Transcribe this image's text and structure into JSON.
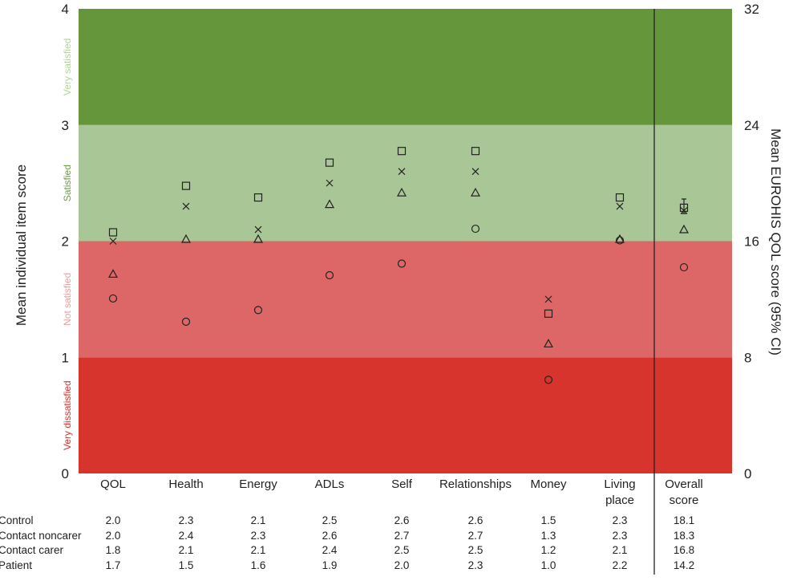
{
  "chart_data": {
    "type": "scatter",
    "categories": [
      "QOL",
      "Health",
      "Energy",
      "ADLs",
      "Self",
      "Relationships",
      "Money",
      "Living place"
    ],
    "overall_category": "Overall score",
    "ylabel": "Mean individual item score",
    "y2label": "Mean EUROHIS QOL score (95% CI)",
    "ylim": [
      0,
      4
    ],
    "y2lim": [
      0,
      32
    ],
    "yticks": [
      "0",
      "1",
      "2",
      "3",
      "4"
    ],
    "y2ticks": [
      "0",
      "8",
      "16",
      "24",
      "32"
    ],
    "bands": [
      {
        "label": "Very dissatisfied",
        "from": 0,
        "to": 1,
        "color": "#d6342c",
        "text_color": "#d6342c"
      },
      {
        "label": "Not satisfied",
        "from": 1,
        "to": 2,
        "color": "#dd6767",
        "text_color": "#e8a0a0"
      },
      {
        "label": "Satisfied",
        "from": 2,
        "to": 3,
        "color": "#a9c796",
        "text_color": "#6d9c48"
      },
      {
        "label": "Very satisfied",
        "from": 3,
        "to": 4,
        "color": "#65963c",
        "text_color": "#b5d39c"
      }
    ],
    "series": [
      {
        "name": "Control",
        "marker": "x",
        "values": [
          2.0,
          2.3,
          2.1,
          2.5,
          2.6,
          2.6,
          1.5,
          2.3
        ],
        "overall": 18.1
      },
      {
        "name": "Contact noncarer",
        "marker": "square",
        "values": [
          2.0,
          2.4,
          2.3,
          2.6,
          2.7,
          2.7,
          1.3,
          2.3
        ],
        "overall": 18.3
      },
      {
        "name": "Contact carer",
        "marker": "triangle",
        "values": [
          1.8,
          2.1,
          2.1,
          2.4,
          2.5,
          2.5,
          1.2,
          2.1
        ],
        "overall": 16.8
      },
      {
        "name": "Patient",
        "marker": "circle",
        "values": [
          1.7,
          1.5,
          1.6,
          1.9,
          2.0,
          2.3,
          1.0,
          2.2
        ],
        "overall": 14.2
      }
    ],
    "table": {
      "rows": [
        {
          "label": "Control",
          "cells": [
            "2.0",
            "2.3",
            "2.1",
            "2.5",
            "2.6",
            "2.6",
            "1.5",
            "2.3",
            "18.1"
          ]
        },
        {
          "label": "Contact noncarer",
          "cells": [
            "2.0",
            "2.4",
            "2.3",
            "2.6",
            "2.7",
            "2.7",
            "1.3",
            "2.3",
            "18.3"
          ]
        },
        {
          "label": "Contact carer",
          "cells": [
            "1.8",
            "2.1",
            "2.1",
            "2.4",
            "2.5",
            "2.5",
            "1.2",
            "2.1",
            "16.8"
          ]
        },
        {
          "label": "Patient",
          "cells": [
            "1.7",
            "1.5",
            "1.6",
            "1.9",
            "2.0",
            "2.3",
            "1.0",
            "2.2",
            "14.2"
          ]
        }
      ]
    }
  }
}
